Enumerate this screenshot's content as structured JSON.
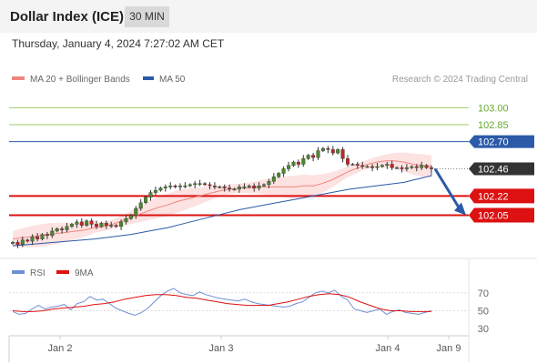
{
  "header": {
    "title": "Dollar Index (ICE)",
    "timeframe": "30 MIN"
  },
  "subtitle": "Thursday, January 4, 2024 7:27:02 AM CET",
  "legend": {
    "ma20": "MA 20 + Bollinger Bands",
    "ma50": "MA 50",
    "credit": "Research © 2024 Trading Central"
  },
  "colors": {
    "ma20": "#f0857f",
    "ma50": "#2c5aa8",
    "bands": "#fde2e2",
    "support": "#dd1111",
    "resistance_upper": "#99cc66",
    "pivot": "#2c5aa8",
    "last_price": "#333333",
    "rsi": "#6d8fd6",
    "rsi_ma": "#dd1111",
    "arrow": "#2c5aa8"
  },
  "chart_data": [
    {
      "type": "candlestick",
      "ylim": [
        101.7,
        103.18
      ],
      "x_labels": [
        "Jan 2",
        "Jan 3",
        "Jan 4",
        "Jan 9"
      ],
      "levels": [
        {
          "label": "103.00",
          "value": 103.0,
          "kind": "resistance"
        },
        {
          "label": "102.85",
          "value": 102.85,
          "kind": "resistance"
        },
        {
          "label": "102.70",
          "value": 102.7,
          "kind": "pivot"
        },
        {
          "label": "102.46",
          "value": 102.46,
          "kind": "last"
        },
        {
          "label": "102.22",
          "value": 102.22,
          "kind": "support"
        },
        {
          "label": "102.05",
          "value": 102.05,
          "kind": "support"
        }
      ],
      "close_series": [
        101.81,
        101.79,
        101.83,
        101.82,
        101.86,
        101.84,
        101.88,
        101.87,
        101.91,
        101.93,
        101.92,
        101.95,
        101.97,
        101.99,
        101.96,
        102.0,
        101.97,
        101.95,
        101.98,
        101.96,
        101.96,
        101.95,
        101.99,
        102.02,
        102.05,
        102.11,
        102.16,
        102.21,
        102.25,
        102.27,
        102.29,
        102.3,
        102.31,
        102.3,
        102.31,
        102.31,
        102.32,
        102.33,
        102.33,
        102.32,
        102.31,
        102.3,
        102.3,
        102.29,
        102.28,
        102.28,
        102.3,
        102.3,
        102.31,
        102.29,
        102.31,
        102.32,
        102.35,
        102.39,
        102.42,
        102.46,
        102.49,
        102.52,
        102.5,
        102.55,
        102.58,
        102.56,
        102.62,
        102.64,
        102.63,
        102.6,
        102.63,
        102.55,
        102.5,
        102.5,
        102.49,
        102.48,
        102.48,
        102.47,
        102.48,
        102.49,
        102.5,
        102.47,
        102.47,
        102.46,
        102.47,
        102.48,
        102.47,
        102.49,
        102.47,
        102.46
      ],
      "ma20_series": [
        101.84,
        101.85,
        101.86,
        101.87,
        101.88,
        101.89,
        101.9,
        101.91,
        101.92,
        101.94,
        101.95,
        101.97,
        102.0,
        102.03,
        102.06,
        102.09,
        102.12,
        102.14,
        102.17,
        102.19,
        102.21,
        102.23,
        102.25,
        102.27,
        102.28,
        102.29,
        102.29,
        102.3,
        102.3,
        102.3,
        102.3,
        102.3,
        102.31,
        102.31,
        102.33,
        102.36,
        102.4,
        102.44,
        102.47,
        102.5,
        102.52,
        102.53,
        102.53,
        102.52,
        102.5,
        102.49,
        102.48,
        102.48,
        102.48,
        102.47,
        102.47,
        102.47,
        102.47
      ],
      "ma20_x": [
        14,
        24,
        34,
        44,
        54,
        64,
        74,
        84,
        94,
        104,
        114,
        124,
        134,
        144,
        154,
        164,
        174,
        184,
        194,
        204,
        214,
        224,
        234,
        244,
        254,
        264,
        274,
        284,
        294,
        304,
        314,
        324,
        334,
        344,
        354,
        364,
        374,
        384,
        394,
        404,
        414,
        424,
        434,
        444,
        454,
        464,
        474,
        474,
        474,
        474,
        474,
        474,
        474
      ],
      "ma50_series": [
        101.78,
        101.8,
        101.82,
        101.84,
        101.86,
        101.88,
        101.91,
        101.94,
        101.98,
        102.02,
        102.06,
        102.1,
        102.13,
        102.16,
        102.19,
        102.22,
        102.25,
        102.28,
        102.3,
        102.32,
        102.34,
        102.36,
        102.38,
        102.4,
        102.41,
        102.42,
        102.43,
        102.44,
        102.45
      ],
      "ma50_x": [
        14,
        44,
        74,
        104,
        124,
        144,
        164,
        184,
        204,
        224,
        244,
        264,
        284,
        304,
        324,
        344,
        364,
        384,
        404,
        424,
        444,
        454,
        464,
        474,
        474,
        474,
        474,
        474,
        474
      ],
      "forecast_arrow": {
        "from": 102.46,
        "to": 102.05
      }
    },
    {
      "type": "line",
      "title": "RSI",
      "series": [
        {
          "name": "RSI"
        },
        {
          "name": "9MA"
        }
      ],
      "ylim": [
        25,
        80
      ],
      "y_ticks": [
        "70",
        "50",
        "30"
      ],
      "rsi_series": [
        49,
        46,
        47,
        52,
        56,
        52,
        54,
        55,
        57,
        51,
        58,
        60,
        66,
        62,
        63,
        58,
        53,
        50,
        47,
        45,
        48,
        53,
        60,
        67,
        72,
        75,
        70,
        68,
        67,
        71,
        68,
        66,
        64,
        63,
        62,
        61,
        63,
        60,
        58,
        57,
        56,
        55,
        54,
        55,
        58,
        60,
        65,
        70,
        72,
        70,
        73,
        66,
        62,
        52,
        50,
        48,
        50,
        52,
        46,
        49,
        51,
        48,
        47,
        46,
        48,
        50
      ],
      "rsi_ma_series": [
        50,
        49,
        49,
        50,
        52,
        53,
        54,
        55,
        57,
        58,
        60,
        63,
        65,
        67,
        68,
        68,
        67,
        65,
        64,
        62,
        60,
        58,
        57,
        56,
        56,
        56,
        58,
        60,
        63,
        66,
        68,
        69,
        68,
        65,
        60,
        56,
        52,
        50,
        50,
        49,
        49,
        49
      ]
    }
  ]
}
